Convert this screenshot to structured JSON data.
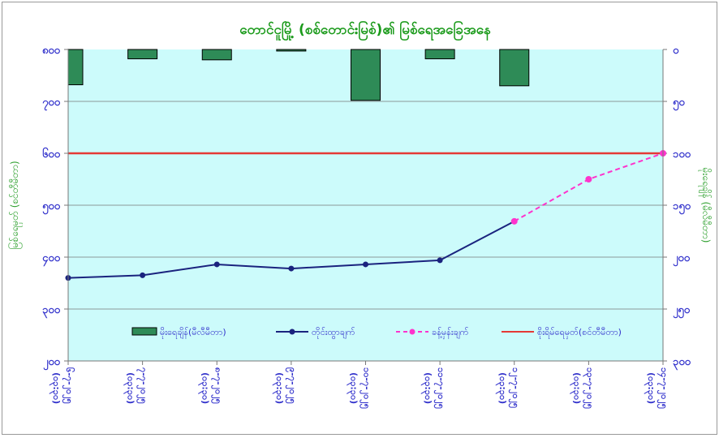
{
  "chart_data": {
    "type": "bar+line",
    "title": "တောင်ငူမြို့ (စစ်တောင်းမြစ်)၏ မြစ်ရေအခြေအနေ",
    "ylabel_left": "မြစ်ရေမှတ် (စင်တီမီတာ)",
    "ylabel_right": "မိုးရေချိန် (မီလီမီတာ)",
    "ylim_left": [
      200,
      800
    ],
    "ylim_right": [
      300,
      0
    ],
    "yticks_left": [
      "၈၀၀",
      "၇၀၀",
      "၆၀၀",
      "၅၀၀",
      "၄၀၀",
      "၃၀၀",
      "၂၀၀"
    ],
    "yticks_right": [
      "၀",
      "၅၀",
      "၁၀၀",
      "၁၅၀",
      "၂၀၀",
      "၂၅၀",
      "၃၀၀"
    ],
    "categories": [
      [
        "၆-၇-၂၀၂၅",
        "(၀၃:၃၀)"
      ],
      [
        "၇-၇-၂၀၂၅",
        "(၀၃:၃၀)"
      ],
      [
        "၈-၇-၂၀၂၅",
        "(၀၃:၃၀)"
      ],
      [
        "၉-၇-၂၀၂၅",
        "(၀၃:၃၀)"
      ],
      [
        "၁၀-၇-၂၀၂၅",
        "(၀၃:၃၀)"
      ],
      [
        "၁၁-၇-၂၀၂၅",
        "(၀၃:၃၀)"
      ],
      [
        "၁၂-၇-၂၀၂၅",
        "(၀၃:၃၀)"
      ],
      [
        "၁၃-၇-၂၀၂၅",
        "(၀၃:၃၀)"
      ],
      [
        "၁၄-၇-၂၀၂၅",
        "(၀၃:၃၀)"
      ]
    ],
    "grid": true,
    "legend_placement": "bottom-inside",
    "series": [
      {
        "name": "မိုးရေချိန်(မီလီမီတာ)",
        "type": "bar",
        "axis": "right",
        "color": "#2e8b57",
        "values": [
          34,
          9,
          10,
          1.5,
          49,
          9,
          35,
          null,
          null
        ]
      },
      {
        "name": "တိုင်းထွာချက်",
        "type": "line",
        "axis": "left",
        "color": "#1a237e",
        "values": [
          360,
          365,
          386,
          378,
          386,
          394,
          469,
          null,
          null
        ]
      },
      {
        "name": "ခန့်မှန်းချက်",
        "type": "dashed-line",
        "axis": "left",
        "color": "#ff33cc",
        "values": [
          null,
          null,
          null,
          null,
          null,
          null,
          469,
          550,
          600
        ]
      },
      {
        "name": "စိုးရိမ်ရေမှတ်(စင်တီမီတာ)",
        "type": "hline",
        "axis": "left",
        "color": "#e53935",
        "value": 600
      }
    ],
    "colors": {
      "plot_bg": "#ccfbfb",
      "title": "#1a9a1a",
      "tick": "#3333cc",
      "axis_title": "#2ea02e"
    }
  }
}
